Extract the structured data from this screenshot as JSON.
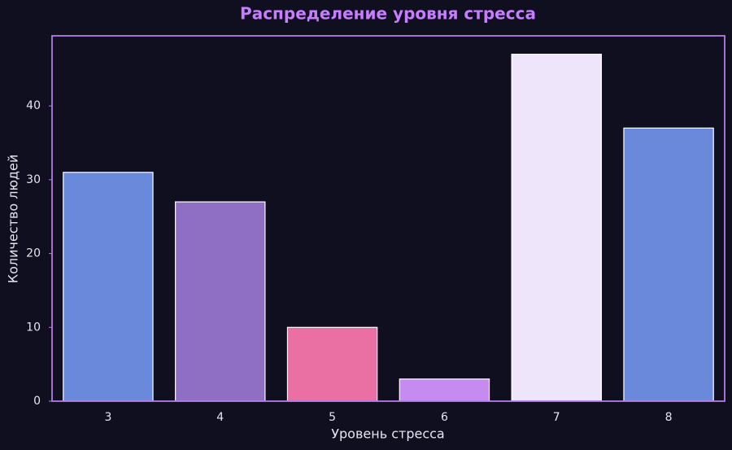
{
  "chart_data": {
    "type": "bar",
    "title": "Распределение уровня стресса",
    "x_label": "Уровень стресса",
    "y_label": "Количество людей",
    "categories": [
      "3",
      "4",
      "5",
      "6",
      "7",
      "8"
    ],
    "values": [
      31,
      27,
      10,
      3,
      47,
      37
    ],
    "colors": [
      "#6a89db",
      "#8e6fc4",
      "#ea6fa3",
      "#c58bf0",
      "#efe5fb",
      "#6a89db"
    ],
    "ylim": [
      0,
      49.5
    ],
    "yticks": [
      0,
      10,
      20,
      30,
      40
    ],
    "grid": false
  }
}
